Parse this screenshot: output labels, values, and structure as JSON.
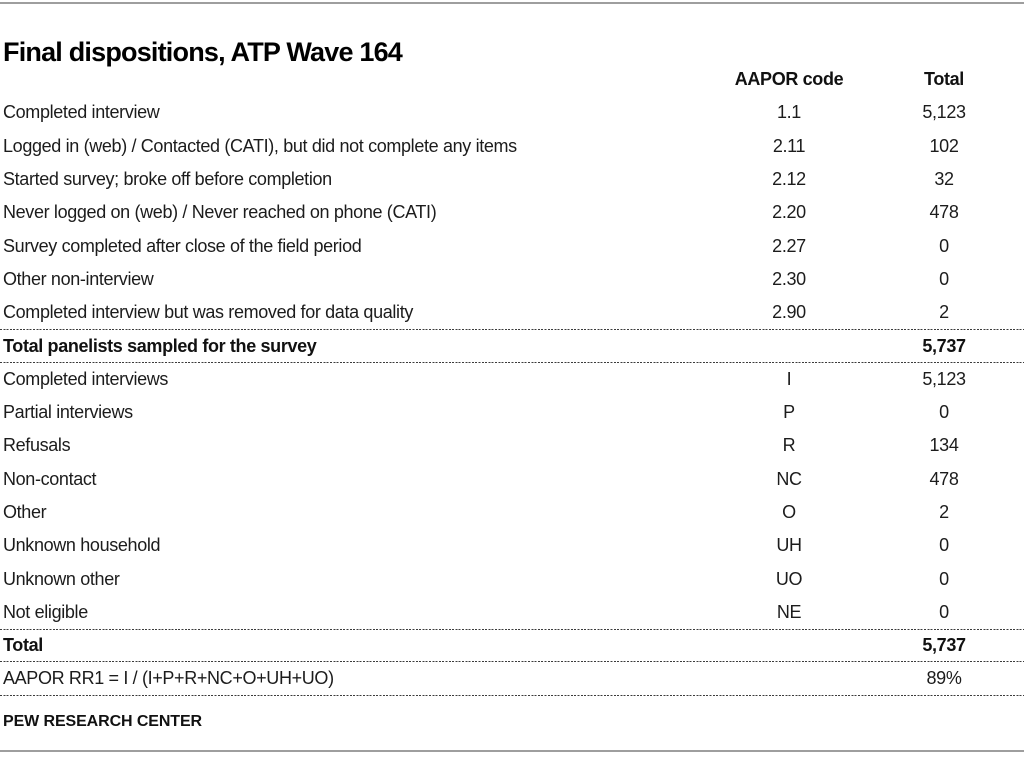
{
  "colors": {
    "text": "#1c1c1c",
    "title_text": "#000000",
    "gray_rule": "#9e9e9e",
    "dotted_divider": "#3c3c3c",
    "background": "#ffffff"
  },
  "chart_data": {
    "type": "table",
    "title": "Final dispositions, ATP Wave 164",
    "columns": [
      "AAPOR code",
      "Total"
    ],
    "rows": [
      {
        "label": "Completed interview",
        "code": "1.1",
        "total": "5,123",
        "style": "normal"
      },
      {
        "label": "Logged in (web) / Contacted (CATI), but did not complete any items",
        "code": "2.11",
        "total": "102",
        "style": "normal"
      },
      {
        "label": "Started survey; broke off before completion",
        "code": "2.12",
        "total": "32",
        "style": "normal"
      },
      {
        "label": "Never logged on (web) / Never reached on phone (CATI)",
        "code": "2.20",
        "total": "478",
        "style": "normal"
      },
      {
        "label": "Survey completed after close of the field period",
        "code": "2.27",
        "total": "0",
        "style": "normal"
      },
      {
        "label": "Other non-interview",
        "code": "2.30",
        "total": "0",
        "style": "normal"
      },
      {
        "label": "Completed interview but was removed for data quality",
        "code": "2.90",
        "total": "2",
        "style": "normal"
      },
      {
        "label": "Total panelists sampled for the survey",
        "code": "",
        "total": "5,737",
        "style": "total"
      },
      {
        "label": "Completed interviews",
        "code": "I",
        "total": "5,123",
        "style": "normal"
      },
      {
        "label": "Partial interviews",
        "code": "P",
        "total": "0",
        "style": "normal"
      },
      {
        "label": "Refusals",
        "code": "R",
        "total": "134",
        "style": "normal"
      },
      {
        "label": "Non-contact",
        "code": "NC",
        "total": "478",
        "style": "normal"
      },
      {
        "label": "Other",
        "code": "O",
        "total": "2",
        "style": "normal"
      },
      {
        "label": "Unknown household",
        "code": "UH",
        "total": "0",
        "style": "normal"
      },
      {
        "label": "Unknown other",
        "code": "UO",
        "total": "0",
        "style": "normal"
      },
      {
        "label": "Not eligible",
        "code": "NE",
        "total": "0",
        "style": "normal"
      },
      {
        "label": "Total",
        "code": "",
        "total": "5,737",
        "style": "total"
      },
      {
        "label": "AAPOR RR1 = I / (I+P+R+NC+O+UH+UO)",
        "code": "",
        "total": "89%",
        "style": "formula"
      }
    ],
    "footer": "PEW RESEARCH CENTER"
  }
}
